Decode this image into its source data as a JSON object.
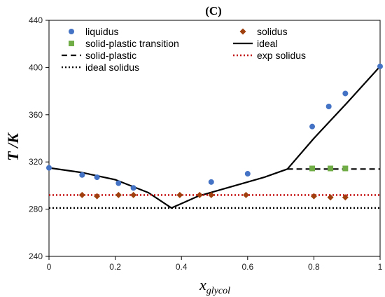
{
  "chart_data": {
    "type": "scatter",
    "title": "(C)",
    "ylabel": "T /K",
    "xlabel_main": "x",
    "xlabel_sub": "glycol",
    "xlim": [
      0,
      1
    ],
    "ylim": [
      240,
      440
    ],
    "xticks": [
      0,
      0.2,
      0.4,
      0.6,
      0.8,
      1
    ],
    "xtick_labels": [
      "0",
      "0.2",
      "0.4",
      "0.6",
      "0.8",
      "1"
    ],
    "yticks": [
      240,
      280,
      320,
      360,
      400,
      440
    ],
    "ytick_labels": [
      "240",
      "280",
      "320",
      "360",
      "400",
      "440"
    ],
    "grid": false,
    "legend_position": "top",
    "colors": {
      "liquidus": "#4472c4",
      "solid_plastic_transition": "#70ad47",
      "solidus": "#a0400f",
      "ideal": "#000000",
      "solid_plastic": "#000000",
      "exp_solidus": "#c00000",
      "ideal_solidus": "#000000"
    },
    "series": [
      {
        "name": "liquidus",
        "kind": "scatter",
        "marker": "circle",
        "points": [
          [
            0,
            315
          ],
          [
            0.1,
            309
          ],
          [
            0.145,
            307
          ],
          [
            0.21,
            302
          ],
          [
            0.255,
            298
          ],
          [
            0.49,
            303
          ],
          [
            0.6,
            310
          ],
          [
            0.795,
            350
          ],
          [
            0.845,
            367
          ],
          [
            0.895,
            378
          ],
          [
            1,
            401
          ]
        ]
      },
      {
        "name": "solidus",
        "kind": "scatter",
        "marker": "diamond",
        "points": [
          [
            0.1,
            292
          ],
          [
            0.145,
            291
          ],
          [
            0.21,
            292
          ],
          [
            0.255,
            292
          ],
          [
            0.395,
            292
          ],
          [
            0.455,
            292
          ],
          [
            0.49,
            292
          ],
          [
            0.595,
            292
          ],
          [
            0.8,
            291
          ],
          [
            0.85,
            290
          ],
          [
            0.895,
            290
          ]
        ]
      },
      {
        "name": "solid-plastic transition",
        "kind": "scatter",
        "marker": "square",
        "points": [
          [
            0.795,
            314.5
          ],
          [
            0.85,
            314.5
          ],
          [
            0.895,
            314.5
          ]
        ]
      },
      {
        "name": "ideal",
        "kind": "line",
        "style": "solid",
        "points": [
          [
            0,
            315
          ],
          [
            0.1,
            311
          ],
          [
            0.2,
            305
          ],
          [
            0.3,
            294
          ],
          [
            0.37,
            281
          ],
          [
            0.45,
            291
          ],
          [
            0.55,
            299
          ],
          [
            0.65,
            307
          ],
          [
            0.72,
            314
          ],
          [
            0.8,
            340
          ],
          [
            0.9,
            370
          ],
          [
            1,
            401
          ]
        ]
      },
      {
        "name": "solid-plastic",
        "kind": "line",
        "style": "dashed",
        "points": [
          [
            0.72,
            314
          ],
          [
            1,
            314
          ]
        ]
      },
      {
        "name": "exp solidus",
        "kind": "line",
        "style": "dotted",
        "points": [
          [
            0,
            292
          ],
          [
            1,
            292
          ]
        ]
      },
      {
        "name": "ideal solidus",
        "kind": "line",
        "style": "dotted",
        "points": [
          [
            0,
            281
          ],
          [
            1,
            281
          ]
        ]
      }
    ],
    "legend": [
      {
        "label": "liquidus",
        "series": "liquidus"
      },
      {
        "label": "solidus",
        "series": "solidus"
      },
      {
        "label": "solid-plastic transition",
        "series": "solid-plastic transition"
      },
      {
        "label": "ideal",
        "series": "ideal"
      },
      {
        "label": "solid-plastic",
        "series": "solid-plastic"
      },
      {
        "label": "exp solidus",
        "series": "exp solidus"
      },
      {
        "label": "ideal solidus",
        "series": "ideal solidus"
      }
    ]
  }
}
